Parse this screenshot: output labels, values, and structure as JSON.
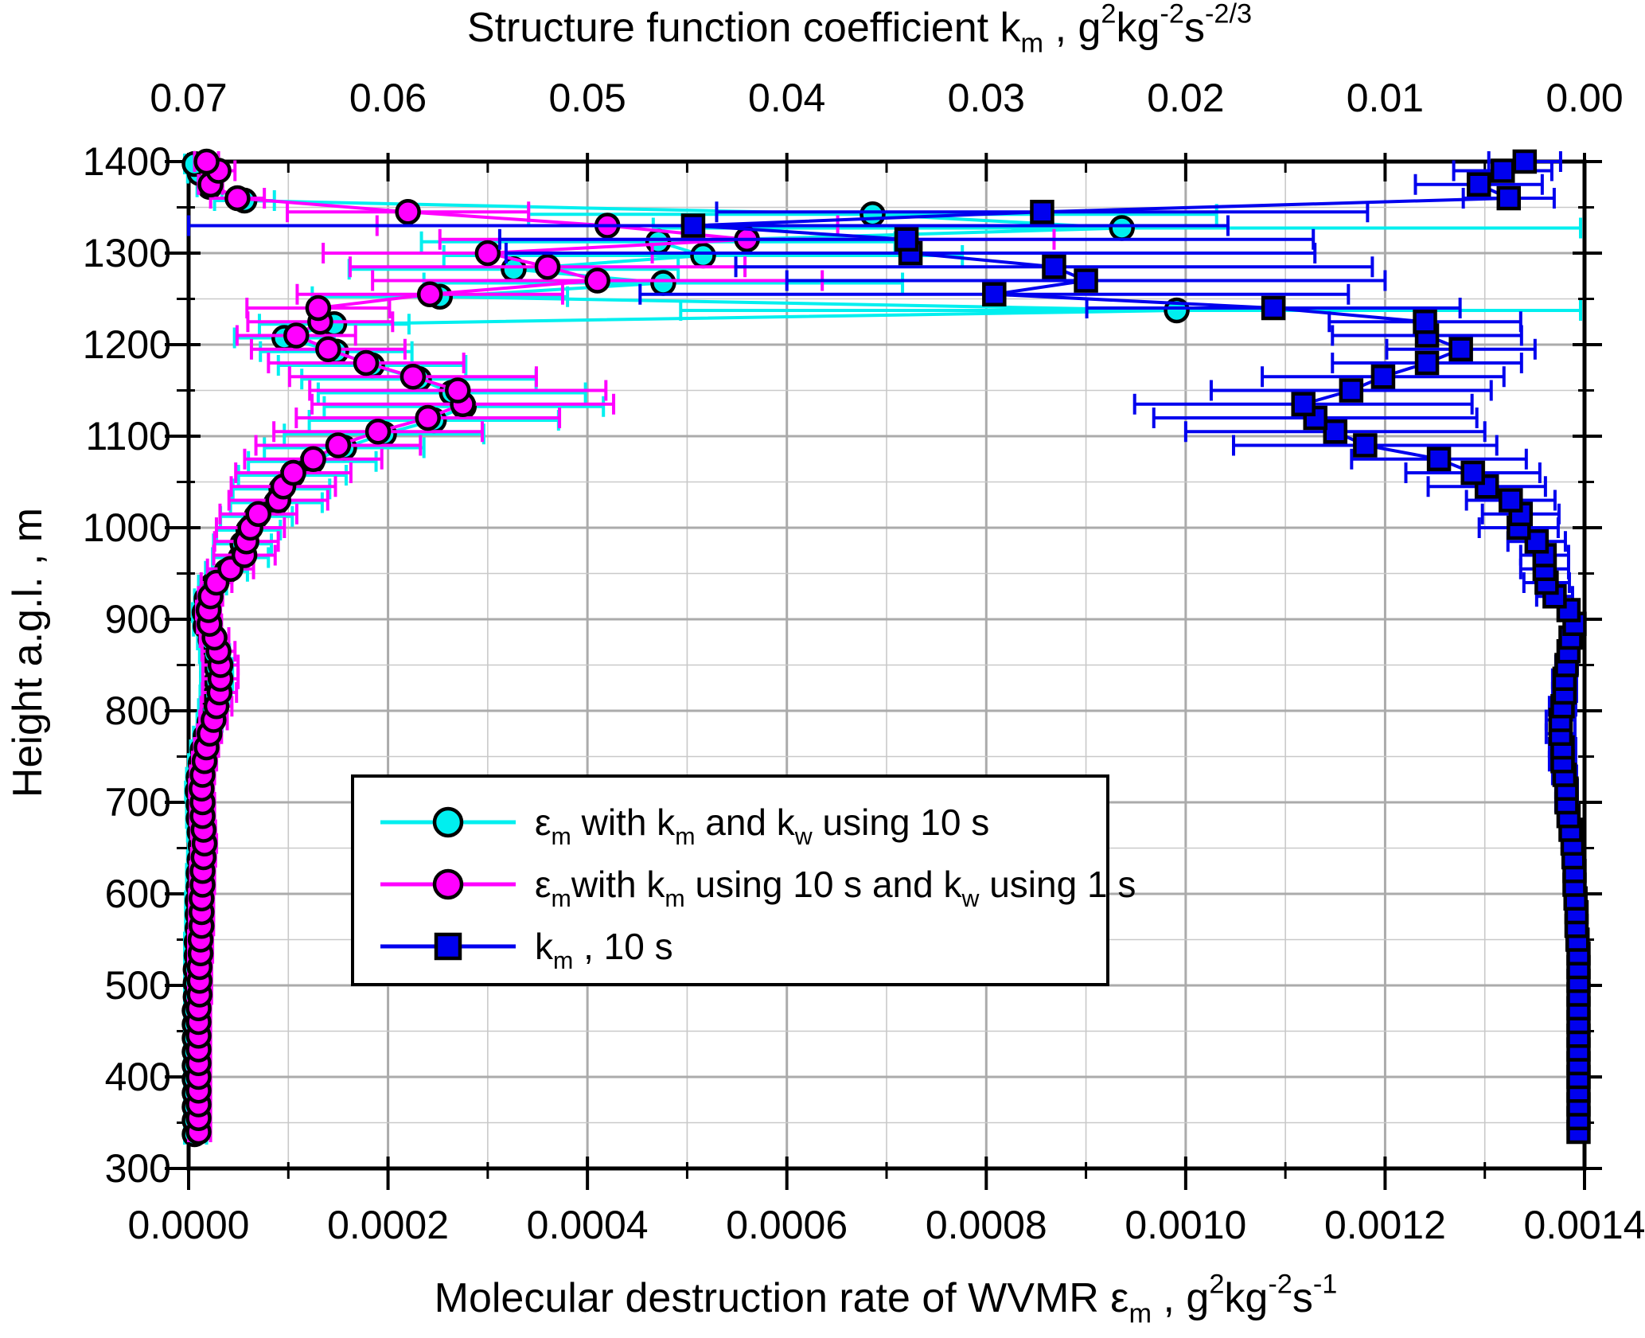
{
  "chart_data": {
    "type": "scatter",
    "background": "#ffffff",
    "titles": {
      "top_parts": [
        {
          "t": "Structure function coefficient k"
        },
        {
          "t": "m",
          "sub": true
        },
        {
          "t": " , g"
        },
        {
          "t": "2",
          "sup": true
        },
        {
          "t": "kg"
        },
        {
          "t": "-2",
          "sup": true
        },
        {
          "t": "s"
        },
        {
          "t": "-2/3",
          "sup": true
        }
      ],
      "bottom_parts": [
        {
          "t": "Molecular destruction rate of WVMR "
        },
        {
          "t": "ε"
        },
        {
          "t": "m",
          "sub": true
        },
        {
          "t": " , g"
        },
        {
          "t": "2",
          "sup": true
        },
        {
          "t": "kg"
        },
        {
          "t": "-2",
          "sup": true
        },
        {
          "t": "s"
        },
        {
          "t": "-1",
          "sup": true
        }
      ],
      "left": "Height a.g.l. , m"
    },
    "axes": {
      "x_bottom": {
        "min": 0.0,
        "max": 0.0014,
        "major_step": 0.0002,
        "minor_step": 0.0001,
        "tick_labels": [
          "0.0000",
          "0.0002",
          "0.0004",
          "0.0006",
          "0.0008",
          "0.0010",
          "0.0012",
          "0.0014"
        ]
      },
      "x_top": {
        "min": 0.0,
        "max": 0.07,
        "reversed": true,
        "major_step": 0.01,
        "minor_step": 0.005,
        "tick_labels": [
          "0.07",
          "0.06",
          "0.05",
          "0.04",
          "0.03",
          "0.02",
          "0.01",
          "0.00"
        ]
      },
      "y": {
        "min": 300,
        "max": 1400,
        "major_step": 100,
        "minor_step": 50,
        "tick_labels": [
          "1400",
          "1300",
          "1200",
          "1100",
          "1000",
          "900",
          "800",
          "700",
          "600",
          "500",
          "400",
          "300"
        ]
      },
      "grid": true
    },
    "colors": {
      "cyan": "#00EFEF",
      "magenta": "#FF00FF",
      "blue": "#0000EE",
      "grid_minor": "#C9C9C9",
      "grid_major": "#ABABAB",
      "frame": "#000000"
    },
    "legend": {
      "position": "inside-left-middle",
      "entries": [
        {
          "series": "epsilon-km-kw-10s",
          "label_parts": [
            {
              "t": "ε"
            },
            {
              "t": "m",
              "sub": true
            },
            {
              "t": " with k"
            },
            {
              "t": "m",
              "sub": true
            },
            {
              "t": " and k"
            },
            {
              "t": "w",
              "sub": true
            },
            {
              "t": " using 10 s"
            }
          ]
        },
        {
          "series": "epsilon-km10s-kw1s",
          "label_parts": [
            {
              "t": "ε"
            },
            {
              "t": "m",
              "sub": true
            },
            {
              "t": "with k"
            },
            {
              "t": "m",
              "sub": true
            },
            {
              "t": " using 10 s and k"
            },
            {
              "t": "w",
              "sub": true
            },
            {
              "t": " using 1 s"
            }
          ]
        },
        {
          "series": "km-10s",
          "label_parts": [
            {
              "t": "k"
            },
            {
              "t": "m",
              "sub": true
            },
            {
              "t": " , 10 s"
            }
          ]
        }
      ]
    },
    "series": [
      {
        "name": "epsilon-km-kw-10s",
        "marker": "circle",
        "color_key": "cyan",
        "axis": "bottom",
        "err_rel": 0.5,
        "err_min": 1.2e-05,
        "offset": [
          -5,
          3
        ],
        "heights": [
          340,
          355,
          370,
          385,
          400,
          415,
          430,
          445,
          460,
          475,
          490,
          505,
          520,
          535,
          550,
          565,
          580,
          595,
          610,
          625,
          640,
          655,
          670,
          685,
          700,
          715,
          730,
          745,
          760,
          775,
          790,
          805,
          820,
          835,
          850,
          865,
          880,
          895,
          910,
          925,
          940,
          955,
          970,
          985,
          1000,
          1015,
          1030,
          1045,
          1060,
          1075,
          1090,
          1105,
          1120,
          1135,
          1150,
          1165,
          1180,
          1195,
          1210,
          1225,
          1240,
          1255,
          1270,
          1285,
          1300,
          1315,
          1330,
          1345,
          1360,
          1375,
          1390,
          1400
        ],
        "values": [
          1e-05,
          1e-05,
          1e-05,
          1e-05,
          1e-05,
          1e-05,
          1e-05,
          1e-05,
          1e-05,
          1e-05,
          1.1e-05,
          1.1e-05,
          1.1e-05,
          1.2e-05,
          1.2e-05,
          1.3e-05,
          1.3e-05,
          1.3e-05,
          1.4e-05,
          1.4e-05,
          1.5e-05,
          1.6e-05,
          1.5e-05,
          1.4e-05,
          1.4e-05,
          1.3e-05,
          1.4e-05,
          1.6e-05,
          1.8e-05,
          2.1e-05,
          2.5e-05,
          2.8e-05,
          3.1e-05,
          3.2e-05,
          3.2e-05,
          3e-05,
          2.6e-05,
          2.1e-05,
          2e-05,
          2.2e-05,
          2.8e-05,
          4.2e-05,
          5.6e-05,
          5.8e-05,
          6.4e-05,
          7.2e-05,
          9.2e-05,
          9.7e-05,
          0.000108,
          0.000128,
          0.00016,
          0.0002,
          0.00025,
          0.00028,
          0.000268,
          0.000235,
          0.000188,
          0.000152,
          0.0001,
          0.00015,
          0.000995,
          0.000256,
          0.00048,
          0.00033,
          0.00052,
          0.000475,
          0.00094,
          0.00069,
          6e-05,
          2.5e-05,
          1.5e-05,
          1e-05
        ]
      },
      {
        "name": "epsilon-km10s-kw1s",
        "marker": "circle",
        "color_key": "magenta",
        "axis": "bottom",
        "err_rel": 0.55,
        "err_min": 1.2e-05,
        "offset": [
          0,
          0
        ],
        "heights": [
          340,
          355,
          370,
          385,
          400,
          415,
          430,
          445,
          460,
          475,
          490,
          505,
          520,
          535,
          550,
          565,
          580,
          595,
          610,
          625,
          640,
          655,
          670,
          685,
          700,
          715,
          730,
          745,
          760,
          775,
          790,
          805,
          820,
          835,
          850,
          865,
          880,
          895,
          910,
          925,
          940,
          955,
          970,
          985,
          1000,
          1015,
          1030,
          1045,
          1060,
          1075,
          1090,
          1105,
          1120,
          1135,
          1150,
          1165,
          1180,
          1195,
          1210,
          1225,
          1240,
          1255,
          1270,
          1285,
          1300,
          1315,
          1330,
          1345,
          1360,
          1375,
          1390,
          1400
        ],
        "values": [
          1e-05,
          1e-05,
          1e-05,
          1e-05,
          1e-05,
          1e-05,
          1e-05,
          1e-05,
          1e-05,
          1e-05,
          1.1e-05,
          1.1e-05,
          1.1e-05,
          1.2e-05,
          1.2e-05,
          1.3e-05,
          1.3e-05,
          1.3e-05,
          1.4e-05,
          1.4e-05,
          1.5e-05,
          1.6e-05,
          1.5e-05,
          1.4e-05,
          1.4e-05,
          1.3e-05,
          1.4e-05,
          1.6e-05,
          1.8e-05,
          2.1e-05,
          2.5e-05,
          2.8e-05,
          3.1e-05,
          3.2e-05,
          3.2e-05,
          3e-05,
          2.6e-05,
          2.1e-05,
          2e-05,
          2.2e-05,
          2.8e-05,
          4.2e-05,
          5.6e-05,
          5.8e-05,
          6.2e-05,
          7e-05,
          9e-05,
          9.5e-05,
          0.000105,
          0.000125,
          0.00015,
          0.00019,
          0.00024,
          0.000275,
          0.00027,
          0.000225,
          0.000178,
          0.00014,
          0.000108,
          0.000132,
          0.00013,
          0.000242,
          0.00041,
          0.00036,
          0.0003,
          0.00056,
          0.00042,
          0.00022,
          4.9e-05,
          2.2e-05,
          3e-05,
          1.8e-05
        ]
      },
      {
        "name": "km-10s",
        "marker": "square",
        "color_key": "blue",
        "axis": "top",
        "err_rel": 0.6,
        "err_min": 0.00018,
        "offset": [
          0,
          0
        ],
        "heights": [
          340,
          355,
          370,
          385,
          400,
          415,
          430,
          445,
          460,
          475,
          490,
          505,
          520,
          535,
          550,
          565,
          580,
          595,
          610,
          625,
          640,
          655,
          670,
          685,
          700,
          715,
          730,
          745,
          760,
          775,
          790,
          805,
          820,
          835,
          850,
          865,
          880,
          895,
          910,
          925,
          940,
          955,
          970,
          985,
          1000,
          1015,
          1030,
          1045,
          1060,
          1075,
          1090,
          1105,
          1120,
          1135,
          1150,
          1165,
          1180,
          1195,
          1210,
          1225,
          1240,
          1255,
          1270,
          1285,
          1300,
          1315,
          1330,
          1345,
          1360,
          1375,
          1390,
          1400
        ],
        "values": [
          0.0003,
          0.0003,
          0.0003,
          0.0003,
          0.0003,
          0.0003,
          0.0003,
          0.0003,
          0.0003,
          0.0003,
          0.0003,
          0.0003,
          0.0003,
          0.0003,
          0.00035,
          0.0004,
          0.0004,
          0.00045,
          0.0005,
          0.0005,
          0.00055,
          0.0006,
          0.0007,
          0.0008,
          0.0009,
          0.0009,
          0.001,
          0.0011,
          0.0011,
          0.0012,
          0.0012,
          0.0011,
          0.001,
          0.001,
          0.0009,
          0.0008,
          0.0007,
          0.0005,
          0.0008,
          0.0015,
          0.0019,
          0.002,
          0.002,
          0.0024,
          0.0033,
          0.0032,
          0.0037,
          0.0049,
          0.0056,
          0.0073,
          0.011,
          0.0125,
          0.0135,
          0.0141,
          0.0117,
          0.0101,
          0.0079,
          0.0062,
          0.0079,
          0.008,
          0.0156,
          0.0296,
          0.025,
          0.0266,
          0.0338,
          0.034,
          0.0447,
          0.0272,
          0.0038,
          0.0053,
          0.0041,
          0.003
        ]
      }
    ]
  }
}
